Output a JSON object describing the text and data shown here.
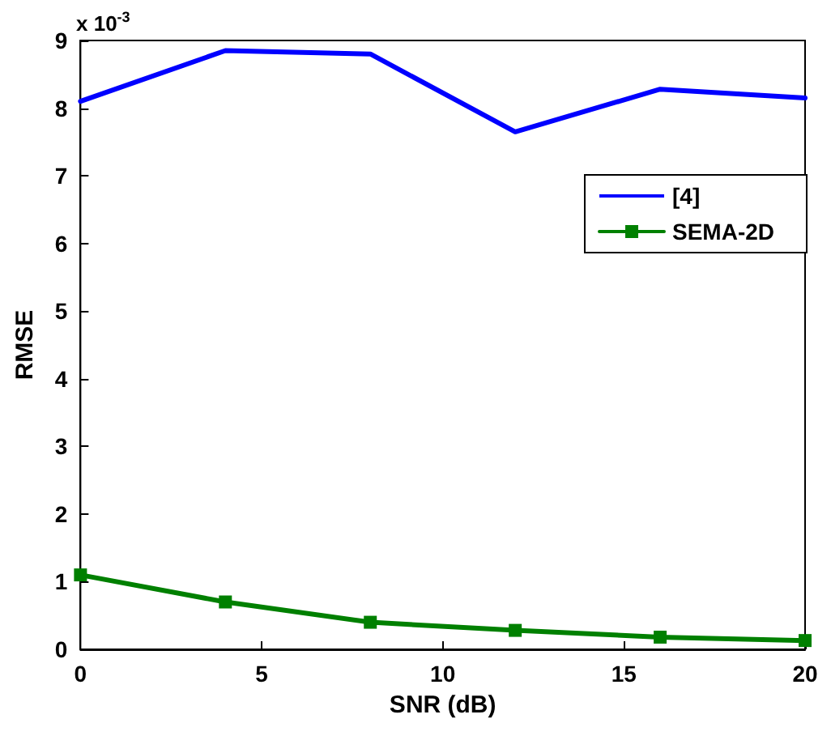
{
  "chart_data": {
    "type": "line",
    "xlabel": "SNR (dB)",
    "ylabel": "RMSE",
    "annotations": [
      "x 10$^{-3}$"
    ],
    "x": [
      0,
      4,
      8,
      12,
      16,
      20
    ],
    "series": [
      {
        "name": "[4]",
        "color": "#0000ff",
        "values": [
          8.1,
          8.85,
          8.8,
          7.65,
          8.28,
          8.15
        ],
        "marker": "none"
      },
      {
        "name": "SEMA-2D",
        "color": "#008000",
        "values": [
          1.1,
          0.7,
          0.4,
          0.28,
          0.18,
          0.13
        ],
        "marker": "square"
      }
    ],
    "xlim": [
      0,
      20
    ],
    "xticks": [
      0,
      5,
      10,
      15,
      20
    ],
    "ylim": [
      0,
      9
    ],
    "yticks": [
      0,
      1,
      2,
      3,
      4,
      5,
      6,
      7,
      8,
      9
    ],
    "grid": false,
    "legend": "top right"
  }
}
